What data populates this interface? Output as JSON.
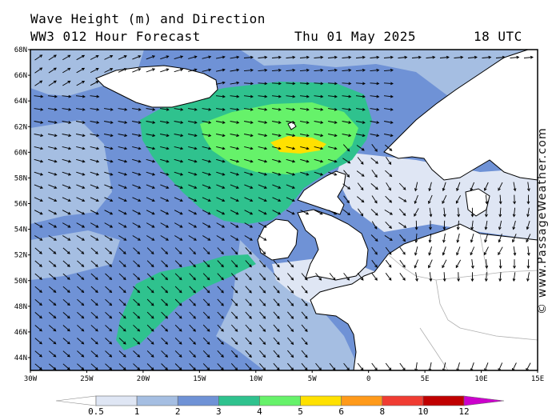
{
  "header": {
    "title": "Wave Height (m) and Direction",
    "model": "WW3 012 Hour Forecast",
    "date": "Thu 01 May 2025",
    "time": "18 UTC"
  },
  "watermark": "© www.PassageWeather.com",
  "map": {
    "lat_labels": [
      "68N",
      "66N",
      "64N",
      "62N",
      "60N",
      "58N",
      "56N",
      "54N",
      "52N",
      "50N",
      "48N",
      "46N",
      "44N"
    ],
    "lon_labels": [
      "30W",
      "25W",
      "20W",
      "15W",
      "10W",
      "5W",
      "0",
      "5E",
      "10E",
      "15E"
    ]
  },
  "colorbar": {
    "labels": [
      "0.5",
      "1",
      "2",
      "3",
      "4",
      "5",
      "6",
      "8",
      "10",
      "12"
    ],
    "colors": [
      "#ffffff",
      "#dfe6f4",
      "#a5bee2",
      "#6f92d6",
      "#2fc28e",
      "#66f26a",
      "#ffe100",
      "#ff9a1a",
      "#f03c32",
      "#c00000",
      "#cc00cc"
    ]
  },
  "colors": {
    "land": "#ffffff",
    "coast": "#000000",
    "arrow": "#000000"
  }
}
